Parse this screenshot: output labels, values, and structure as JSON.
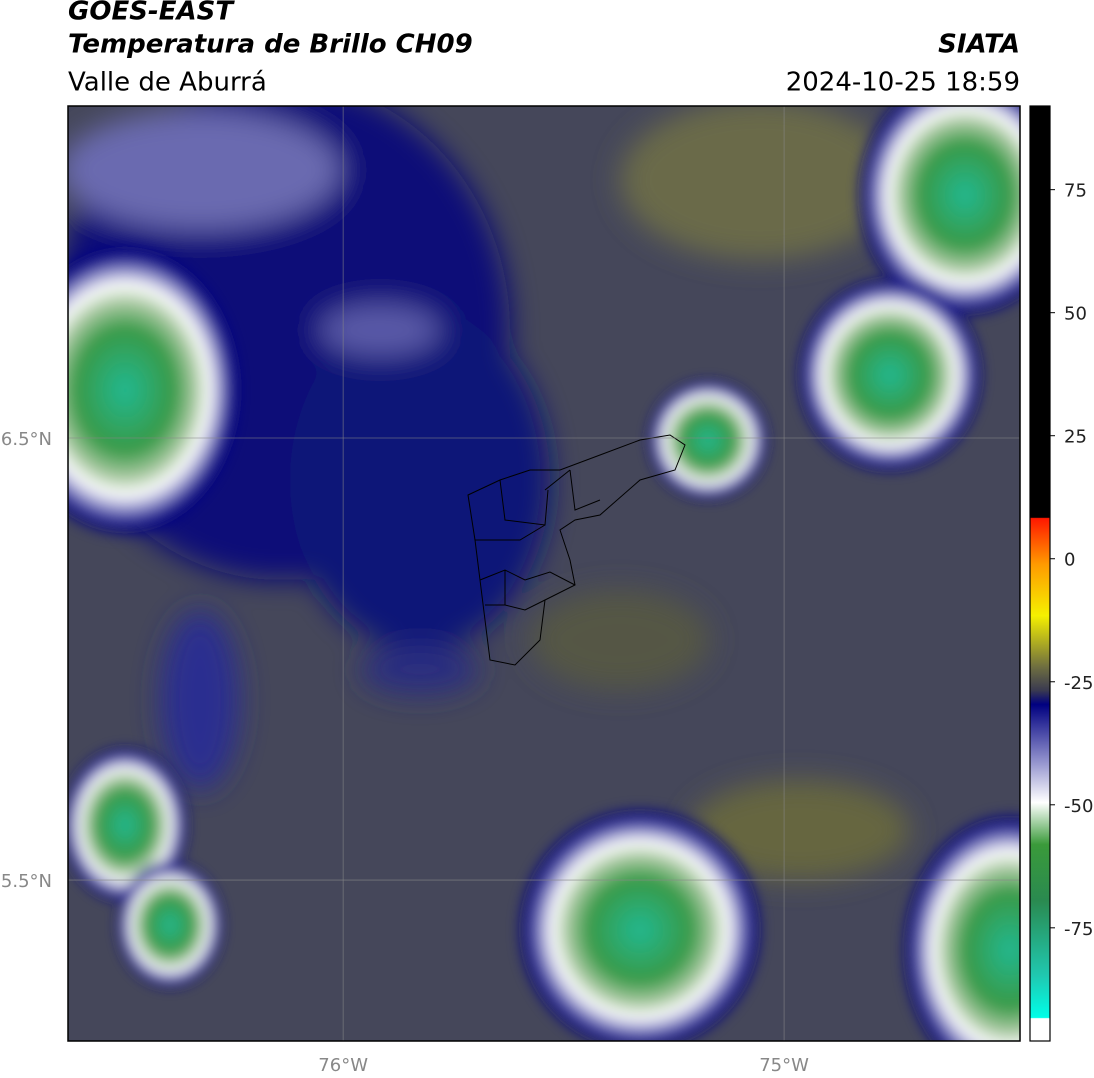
{
  "header": {
    "title": "GOES-EAST",
    "subtitle": "Temperatura de Brillo CH09",
    "region": "Valle de Aburrá",
    "source": "SIATA",
    "datetime": "2024-10-25 18:59"
  },
  "map": {
    "xlim": [
      -76.624,
      -74.465
    ],
    "ylim": [
      5.136,
      7.251
    ],
    "xticks": [
      {
        "value": -76,
        "label": "76°W"
      },
      {
        "value": -75,
        "label": "75°W"
      }
    ],
    "yticks": [
      {
        "value": 6.5,
        "label": "6.5°N"
      },
      {
        "value": 5.5,
        "label": "5.5°N"
      }
    ],
    "grid": true
  },
  "colorbar": {
    "lim": [
      -98,
      92
    ],
    "ticks": [
      75,
      50,
      25,
      0,
      -25,
      -50,
      -75
    ]
  }
}
